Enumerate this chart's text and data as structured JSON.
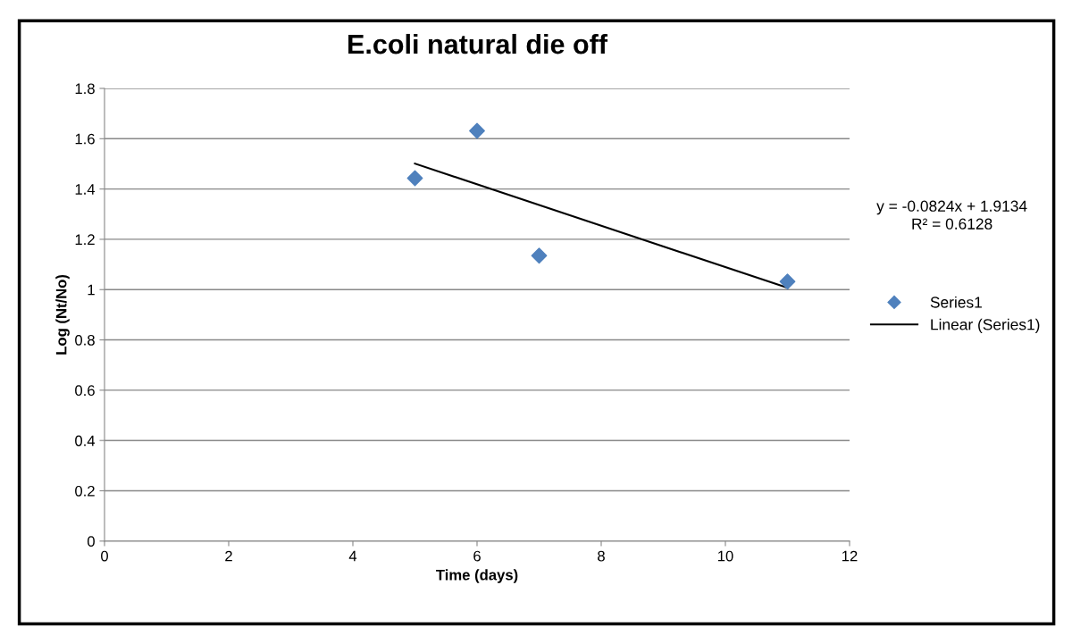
{
  "chart_data": {
    "type": "scatter",
    "title": "E.coli natural die off",
    "xlabel": "Time (days)",
    "ylabel": "Log (Nt/No)",
    "series": [
      {
        "name": "Series1",
        "color": "#4f81bd",
        "x": [
          5,
          6,
          7,
          11
        ],
        "values": [
          1.443,
          1.631,
          1.135,
          1.032
        ],
        "marker": "diamond"
      },
      {
        "name": "Linear (Series1)",
        "type": "line",
        "color": "#000000",
        "x": [
          5,
          11
        ],
        "values": [
          1.501,
          1.007
        ],
        "marker": "none",
        "line_style": "solid"
      }
    ],
    "annotations": [
      "y = -0.0824x + 1.9134\nR² = 0.6128"
    ],
    "xlim": [
      0,
      12
    ],
    "xticks": [
      0,
      2,
      4,
      6,
      8,
      10,
      12
    ],
    "ylim": [
      0,
      1.8
    ],
    "yticks": [
      0,
      0.2,
      0.4,
      0.6,
      0.8,
      1,
      1.2,
      1.4,
      1.6,
      1.8
    ],
    "grid": "y",
    "legend": "right"
  }
}
